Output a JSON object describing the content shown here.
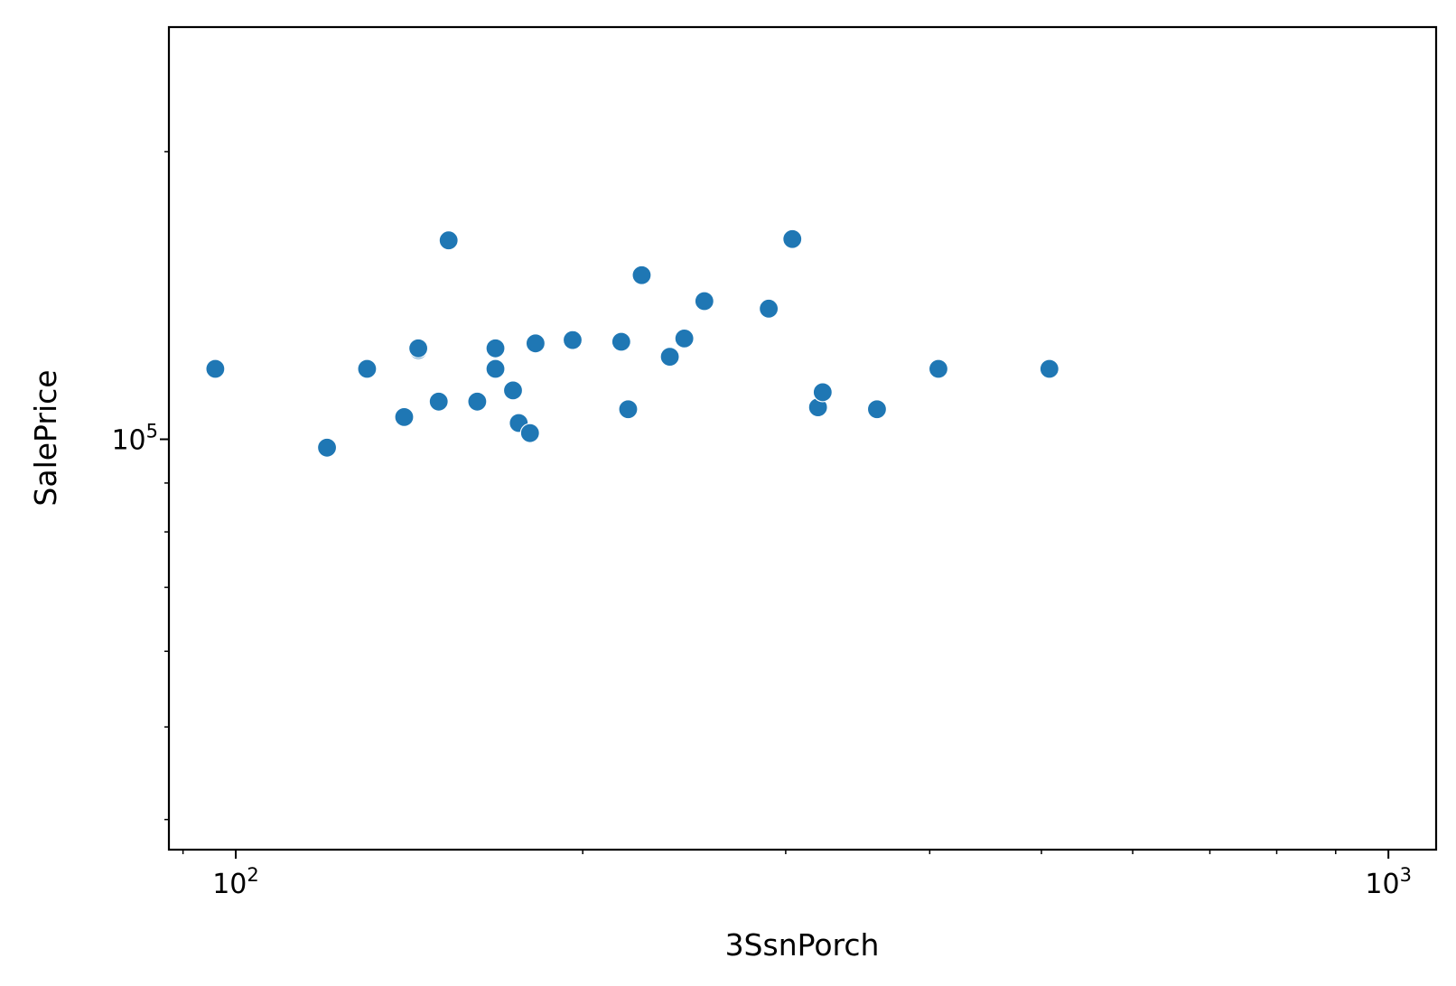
{
  "chart_data": {
    "type": "scatter",
    "title": "",
    "xlabel": "3SsnPorch",
    "ylabel": "SalePrice",
    "xscale": "log",
    "yscale": "log",
    "xlim": [
      87.5,
      1100
    ],
    "ylim": [
      37200,
      270000
    ],
    "grid": false,
    "legend": "none",
    "marker_color": "#1f77b4",
    "x_ticks": [
      {
        "value": 100,
        "base": "10",
        "exp": "2"
      },
      {
        "value": 1000,
        "base": "10",
        "exp": "3"
      }
    ],
    "y_ticks": [
      {
        "value": 100000,
        "base": "10",
        "exp": "5"
      }
    ],
    "points": [
      {
        "x": 96,
        "y": 118500
      },
      {
        "x": 120,
        "y": 98000
      },
      {
        "x": 130,
        "y": 118500
      },
      {
        "x": 140,
        "y": 105500
      },
      {
        "x": 144,
        "y": 124000
      },
      {
        "x": 144,
        "y": 124500
      },
      {
        "x": 150,
        "y": 109500
      },
      {
        "x": 153,
        "y": 161500
      },
      {
        "x": 162,
        "y": 109500
      },
      {
        "x": 168,
        "y": 124500
      },
      {
        "x": 168,
        "y": 118500
      },
      {
        "x": 174,
        "y": 112500
      },
      {
        "x": 176,
        "y": 104000
      },
      {
        "x": 180,
        "y": 101500
      },
      {
        "x": 182,
        "y": 126000
      },
      {
        "x": 196,
        "y": 127000
      },
      {
        "x": 216,
        "y": 126500
      },
      {
        "x": 219,
        "y": 107500
      },
      {
        "x": 225,
        "y": 148500
      },
      {
        "x": 238,
        "y": 122000
      },
      {
        "x": 245,
        "y": 127500
      },
      {
        "x": 255,
        "y": 139500
      },
      {
        "x": 290,
        "y": 137000
      },
      {
        "x": 304,
        "y": 162000
      },
      {
        "x": 320,
        "y": 108000
      },
      {
        "x": 323,
        "y": 112000
      },
      {
        "x": 360,
        "y": 107500
      },
      {
        "x": 407,
        "y": 118500
      },
      {
        "x": 508,
        "y": 118500
      }
    ]
  }
}
